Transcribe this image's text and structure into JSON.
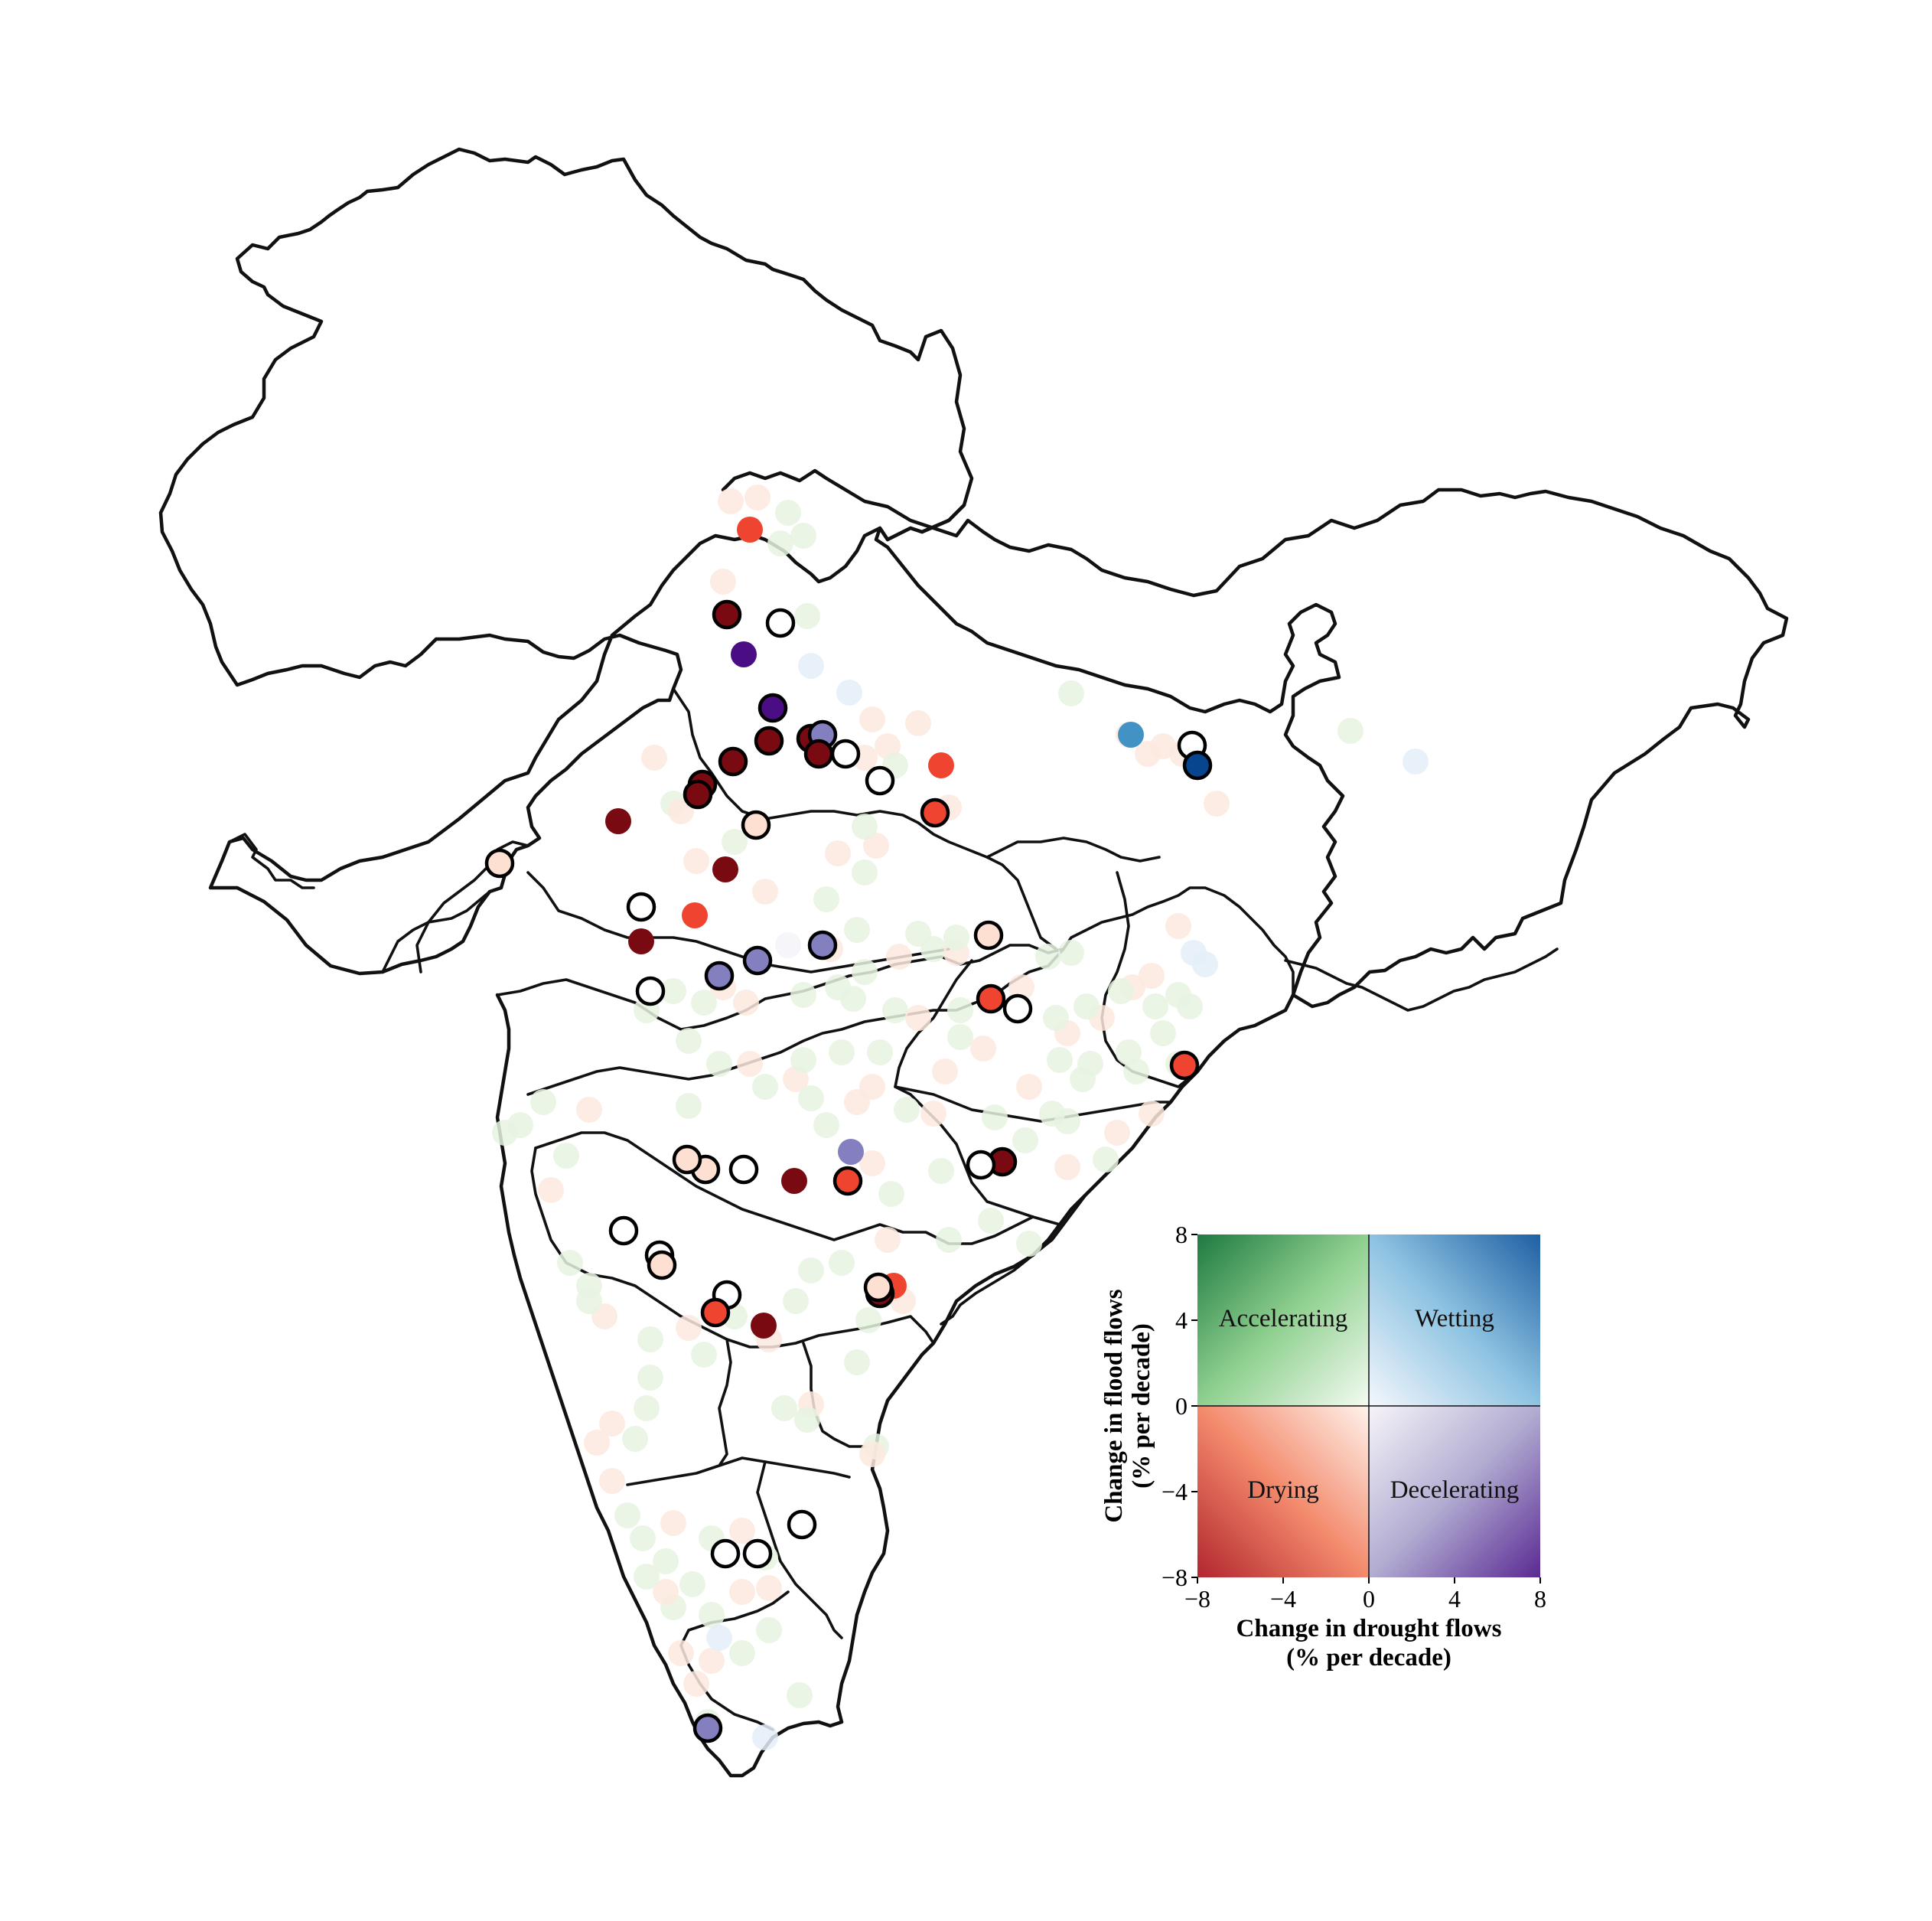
{
  "legend": {
    "x_title_line1": "Change in drought flows",
    "x_title_line2": "(% per decade)",
    "y_title_line1": "Change in flood flows",
    "y_title_line2": "(% per decade)",
    "x_ticks": [
      "−8",
      "−4",
      "0",
      "4",
      "8"
    ],
    "y_ticks": [
      "8",
      "4",
      "0",
      "−4",
      "−8"
    ],
    "x_range": [
      -8,
      8
    ],
    "y_range": [
      -8,
      8
    ],
    "quadrants": {
      "top_left": "Accelerating",
      "top_right": "Wetting",
      "bottom_left": "Drying",
      "bottom_right": "Decelerating"
    },
    "quadrant_colors": {
      "accelerating": "#1e7a41",
      "wetting": "#1f5fa3",
      "drying": "#b3262e",
      "decelerating": "#5a2a93"
    }
  },
  "map": {
    "boundary_color": "#111111",
    "station_color_scheme": "bivariate drought-flow vs flood-flow trend",
    "marker_encoding": "black outline = significant trend; faint = non-significant"
  }
}
